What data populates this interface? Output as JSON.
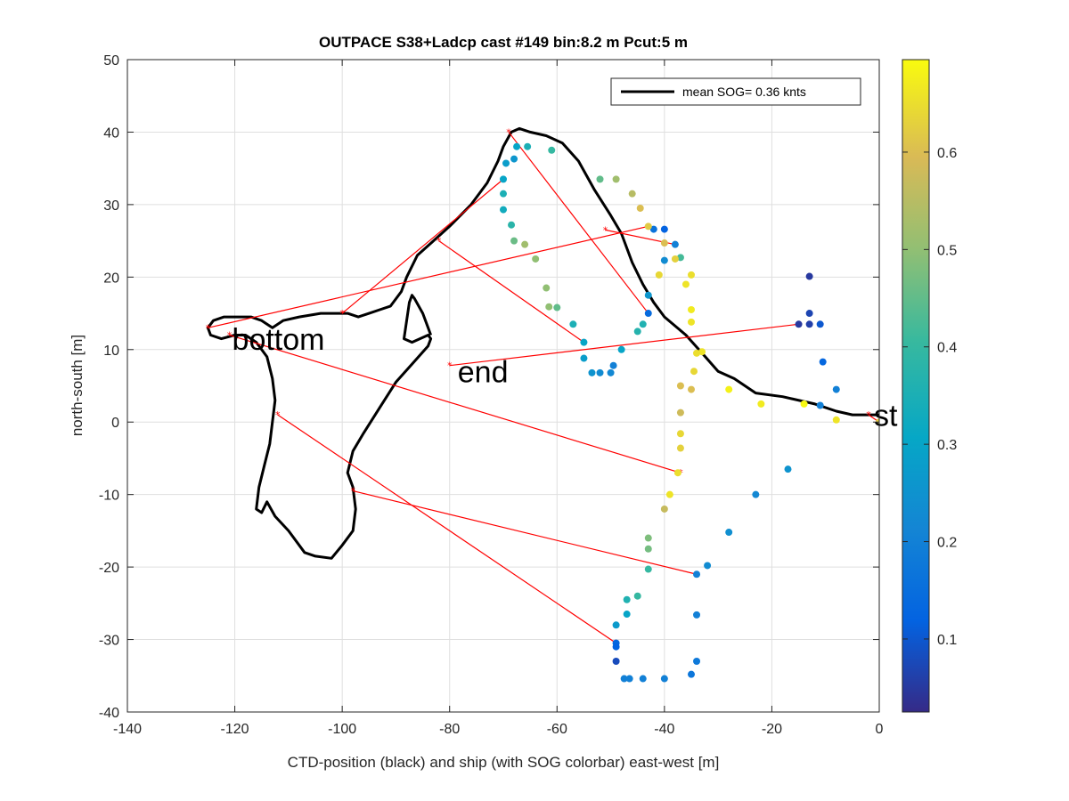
{
  "chart_data": {
    "type": "scatter",
    "title": "OUTPACE S38+Ladcp cast #149 bin:8.2 m  Pcut:5 m",
    "xlabel": "CTD-position (black) and ship (with SOG colorbar) east-west [m]",
    "ylabel": "north-south [m]",
    "xlim": [
      -140,
      0
    ],
    "ylim": [
      -40,
      50
    ],
    "xticks": [
      -140,
      -120,
      -100,
      -80,
      -60,
      -40,
      -20,
      0
    ],
    "yticks": [
      -40,
      -30,
      -20,
      -10,
      0,
      10,
      20,
      30,
      40,
      50
    ],
    "grid": true,
    "legend": {
      "placement": "top-right",
      "entries": [
        {
          "label": "mean SOG=  0.36 knts",
          "color": "#000000"
        }
      ]
    },
    "colorbar": {
      "range": [
        0.025,
        0.695
      ],
      "ticks": [
        0.1,
        0.2,
        0.3,
        0.4,
        0.5,
        0.6
      ]
    },
    "annotations": [
      {
        "text": "bottom",
        "x": -120.5,
        "y": 10
      },
      {
        "text": "end",
        "x": -78.5,
        "y": 5.5
      },
      {
        "text": "st",
        "x": -1,
        "y": -0.5
      }
    ],
    "ctd_track": [
      [
        0,
        1
      ],
      [
        -2,
        1
      ],
      [
        -5,
        1
      ],
      [
        -8,
        1.5
      ],
      [
        -12,
        2.5
      ],
      [
        -18,
        3.5
      ],
      [
        -23,
        4
      ],
      [
        -27,
        6
      ],
      [
        -30,
        7
      ],
      [
        -33,
        9.5
      ],
      [
        -36,
        12
      ],
      [
        -40,
        14.5
      ],
      [
        -42,
        16.5
      ],
      [
        -44,
        19
      ],
      [
        -46,
        22
      ],
      [
        -48,
        26
      ],
      [
        -50,
        28.5
      ],
      [
        -53,
        32
      ],
      [
        -56,
        36
      ],
      [
        -59,
        38.5
      ],
      [
        -62,
        39.5
      ],
      [
        -65,
        40
      ],
      [
        -67,
        40.5
      ],
      [
        -68.5,
        40
      ],
      [
        -70,
        38
      ],
      [
        -71,
        36
      ],
      [
        -73,
        33
      ],
      [
        -76,
        30
      ],
      [
        -80,
        27
      ],
      [
        -83,
        25
      ],
      [
        -86,
        23
      ],
      [
        -88,
        20
      ],
      [
        -89,
        18
      ],
      [
        -91,
        16
      ],
      [
        -93,
        15.5
      ],
      [
        -95,
        15
      ],
      [
        -97,
        14.5
      ],
      [
        -99,
        15
      ],
      [
        -101,
        15
      ],
      [
        -104,
        15
      ],
      [
        -108,
        14.5
      ],
      [
        -111,
        14
      ],
      [
        -113,
        13
      ],
      [
        -115,
        14
      ],
      [
        -117,
        14.5
      ],
      [
        -120,
        14.5
      ],
      [
        -122,
        14.5
      ],
      [
        -124,
        14
      ],
      [
        -125,
        13
      ],
      [
        -124.5,
        12
      ],
      [
        -122.5,
        11.5
      ],
      [
        -120,
        12
      ],
      [
        -118,
        12
      ],
      [
        -116,
        11
      ],
      [
        -114,
        9
      ],
      [
        -113,
        6
      ],
      [
        -112.5,
        3
      ],
      [
        -113,
        0
      ],
      [
        -113.5,
        -3
      ],
      [
        -114.5,
        -6
      ],
      [
        -115.5,
        -9
      ],
      [
        -116,
        -12
      ],
      [
        -115,
        -12.5
      ],
      [
        -114,
        -11
      ],
      [
        -112.5,
        -13
      ],
      [
        -110,
        -15
      ],
      [
        -107,
        -18
      ],
      [
        -105,
        -18.5
      ],
      [
        -102,
        -18.8
      ],
      [
        -100,
        -17
      ],
      [
        -98,
        -15
      ],
      [
        -97.5,
        -12
      ],
      [
        -98,
        -9
      ],
      [
        -99,
        -7
      ],
      [
        -98,
        -4
      ],
      [
        -96,
        -1.5
      ],
      [
        -93,
        2
      ],
      [
        -90,
        5.5
      ],
      [
        -87,
        8
      ],
      [
        -84,
        10.5
      ],
      [
        -83.5,
        11.5
      ],
      [
        -84,
        12
      ],
      [
        -87,
        11
      ],
      [
        -88.5,
        11.5
      ],
      [
        -88,
        14
      ],
      [
        -87.5,
        16.5
      ],
      [
        -87,
        17.5
      ],
      [
        -86.5,
        17
      ],
      [
        -85,
        15
      ],
      [
        -84,
        13
      ],
      [
        -83.5,
        12
      ]
    ],
    "red_segments": [
      [
        [
          -125,
          13
        ],
        [
          -43,
          27
        ]
      ],
      [
        [
          -100,
          15
        ],
        [
          -70,
          33.5
        ]
      ],
      [
        [
          -82,
          25
        ],
        [
          -55,
          11
        ]
      ],
      [
        [
          -69,
          40
        ],
        [
          -43,
          15
        ]
      ],
      [
        [
          -51,
          26.5
        ],
        [
          -38,
          24.5
        ]
      ],
      [
        [
          -80,
          7.8
        ],
        [
          -15,
          13.5
        ]
      ],
      [
        [
          -121,
          12
        ],
        [
          -37,
          -7
        ]
      ],
      [
        [
          -112,
          1
        ],
        [
          -49,
          -30.5
        ]
      ],
      [
        [
          -98,
          -9.5
        ],
        [
          -34,
          -21
        ]
      ],
      [
        [
          -2,
          1
        ],
        [
          0,
          0
        ]
      ]
    ],
    "ship_points": [
      {
        "x": 0,
        "y": 0,
        "sog": 0.62
      },
      {
        "x": -8,
        "y": 0.3,
        "sog": 0.66
      },
      {
        "x": -14,
        "y": 2.5,
        "sog": 0.69
      },
      {
        "x": -22,
        "y": 2.5,
        "sog": 0.67
      },
      {
        "x": -28,
        "y": 4.5,
        "sog": 0.68
      },
      {
        "x": -33,
        "y": 9.7,
        "sog": 0.66
      },
      {
        "x": -34,
        "y": 9.5,
        "sog": 0.65
      },
      {
        "x": -34.5,
        "y": 7,
        "sog": 0.64
      },
      {
        "x": -35,
        "y": 4.5,
        "sog": 0.6
      },
      {
        "x": -37,
        "y": 5,
        "sog": 0.6
      },
      {
        "x": -37,
        "y": 1.3,
        "sog": 0.58
      },
      {
        "x": -37,
        "y": -1.6,
        "sog": 0.64
      },
      {
        "x": -37,
        "y": -3.6,
        "sog": 0.63
      },
      {
        "x": -37.5,
        "y": -7,
        "sog": 0.65
      },
      {
        "x": -39,
        "y": -10,
        "sog": 0.66
      },
      {
        "x": -40,
        "y": -12,
        "sog": 0.57
      },
      {
        "x": -43,
        "y": -16,
        "sog": 0.48
      },
      {
        "x": -43,
        "y": -17.5,
        "sog": 0.47
      },
      {
        "x": -43,
        "y": -20.3,
        "sog": 0.4
      },
      {
        "x": -45,
        "y": -24,
        "sog": 0.4
      },
      {
        "x": -47,
        "y": -24.5,
        "sog": 0.36
      },
      {
        "x": -47,
        "y": -26.5,
        "sog": 0.3
      },
      {
        "x": -49,
        "y": -28,
        "sog": 0.27
      },
      {
        "x": -49,
        "y": -30.5,
        "sog": 0.13
      },
      {
        "x": -49,
        "y": -31,
        "sog": 0.12
      },
      {
        "x": -49,
        "y": -33,
        "sog": 0.08
      },
      {
        "x": -47.5,
        "y": -35.4,
        "sog": 0.2
      },
      {
        "x": -46.5,
        "y": -35.4,
        "sog": 0.2
      },
      {
        "x": -44,
        "y": -35.4,
        "sog": 0.2
      },
      {
        "x": -40,
        "y": -35.4,
        "sog": 0.2
      },
      {
        "x": -35,
        "y": -34.8,
        "sog": 0.17
      },
      {
        "x": -34,
        "y": -33,
        "sog": 0.18
      },
      {
        "x": -34,
        "y": -26.6,
        "sog": 0.2
      },
      {
        "x": -34,
        "y": -21,
        "sog": 0.2
      },
      {
        "x": -32,
        "y": -19.8,
        "sog": 0.23
      },
      {
        "x": -28,
        "y": -15.2,
        "sog": 0.24
      },
      {
        "x": -23,
        "y": -10,
        "sog": 0.22
      },
      {
        "x": -17,
        "y": -6.5,
        "sog": 0.25
      },
      {
        "x": -8,
        "y": 4.5,
        "sog": 0.2
      },
      {
        "x": -11,
        "y": 2.3,
        "sog": 0.2
      },
      {
        "x": -10.5,
        "y": 8.3,
        "sog": 0.13
      },
      {
        "x": -13,
        "y": 13.5,
        "sog": 0.06
      },
      {
        "x": -11,
        "y": 13.5,
        "sog": 0.1
      },
      {
        "x": -13,
        "y": 15,
        "sog": 0.07
      },
      {
        "x": -13,
        "y": 20.1,
        "sog": 0.05
      },
      {
        "x": -15,
        "y": 13.5,
        "sog": 0.05
      },
      {
        "x": -35,
        "y": 13.8,
        "sog": 0.66
      },
      {
        "x": -35,
        "y": 15.5,
        "sog": 0.67
      },
      {
        "x": -36,
        "y": 19,
        "sog": 0.66
      },
      {
        "x": -35,
        "y": 20.3,
        "sog": 0.65
      },
      {
        "x": -37,
        "y": 22.7,
        "sog": 0.42
      },
      {
        "x": -38,
        "y": 22.5,
        "sog": 0.63
      },
      {
        "x": -38,
        "y": 24.5,
        "sog": 0.2
      },
      {
        "x": -40,
        "y": 24.7,
        "sog": 0.6
      },
      {
        "x": -40,
        "y": 22.3,
        "sog": 0.23
      },
      {
        "x": -40,
        "y": 26.6,
        "sog": 0.12
      },
      {
        "x": -41,
        "y": 20.3,
        "sog": 0.64
      },
      {
        "x": -42,
        "y": 26.6,
        "sog": 0.16
      },
      {
        "x": -43,
        "y": 27,
        "sog": 0.62
      },
      {
        "x": -43,
        "y": 17.5,
        "sog": 0.26
      },
      {
        "x": -43,
        "y": 15,
        "sog": 0.14
      },
      {
        "x": -44,
        "y": 13.5,
        "sog": 0.36
      },
      {
        "x": -45,
        "y": 12.5,
        "sog": 0.37
      },
      {
        "x": -44.5,
        "y": 29.5,
        "sog": 0.6
      },
      {
        "x": -46,
        "y": 31.5,
        "sog": 0.55
      },
      {
        "x": -49,
        "y": 33.5,
        "sog": 0.52
      },
      {
        "x": -52,
        "y": 33.5,
        "sog": 0.45
      },
      {
        "x": -49.5,
        "y": 7.8,
        "sog": 0.2
      },
      {
        "x": -50,
        "y": 6.8,
        "sog": 0.22
      },
      {
        "x": -52,
        "y": 6.8,
        "sog": 0.23
      },
      {
        "x": -53.5,
        "y": 6.8,
        "sog": 0.25
      },
      {
        "x": -55,
        "y": 8.8,
        "sog": 0.28
      },
      {
        "x": -48,
        "y": 10,
        "sog": 0.3
      },
      {
        "x": -55,
        "y": 11,
        "sog": 0.3
      },
      {
        "x": -57,
        "y": 13.5,
        "sog": 0.35
      },
      {
        "x": -60,
        "y": 15.8,
        "sog": 0.45
      },
      {
        "x": -61.5,
        "y": 15.9,
        "sog": 0.5
      },
      {
        "x": -62,
        "y": 18.5,
        "sog": 0.5
      },
      {
        "x": -64,
        "y": 22.5,
        "sog": 0.5
      },
      {
        "x": -66,
        "y": 24.5,
        "sog": 0.52
      },
      {
        "x": -68,
        "y": 25,
        "sog": 0.46
      },
      {
        "x": -68.5,
        "y": 27.2,
        "sog": 0.38
      },
      {
        "x": -70,
        "y": 29.3,
        "sog": 0.33
      },
      {
        "x": -70,
        "y": 31.5,
        "sog": 0.35
      },
      {
        "x": -70,
        "y": 33.5,
        "sog": 0.3
      },
      {
        "x": -69.5,
        "y": 35.7,
        "sog": 0.28
      },
      {
        "x": -68,
        "y": 36.3,
        "sog": 0.26
      },
      {
        "x": -67.5,
        "y": 38,
        "sog": 0.3
      },
      {
        "x": -65.5,
        "y": 38,
        "sog": 0.35
      },
      {
        "x": -61,
        "y": 37.5,
        "sog": 0.4
      }
    ]
  }
}
